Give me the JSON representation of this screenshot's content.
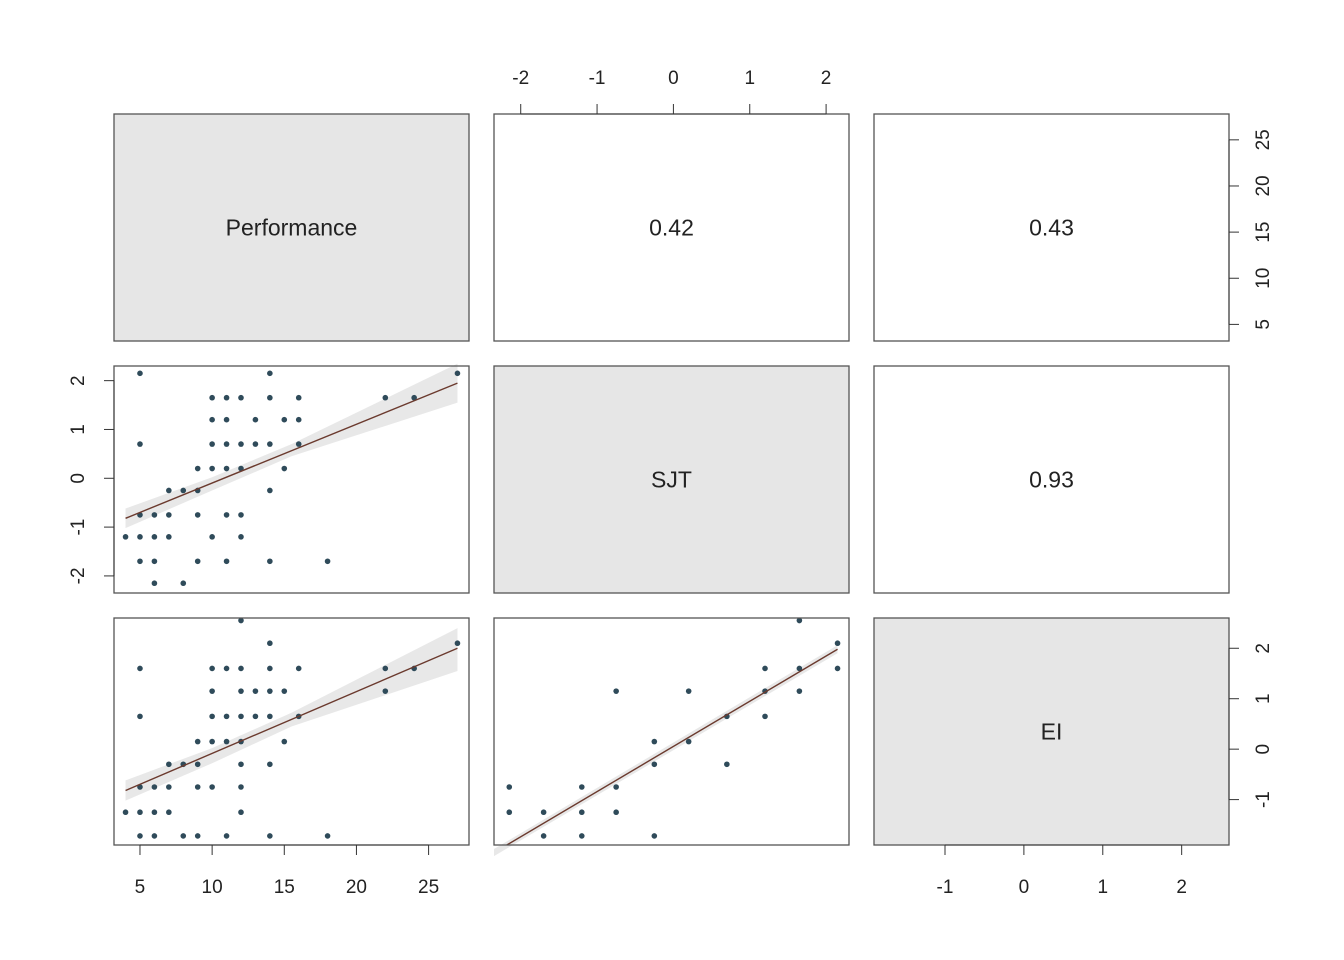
{
  "chart_data": {
    "type": "scatter",
    "variables": [
      "Performance",
      "SJT",
      "EI"
    ],
    "axes": {
      "Performance": {
        "ticks": [
          5,
          10,
          15,
          20,
          25
        ],
        "lim": [
          3.2,
          27.8
        ]
      },
      "SJT": {
        "ticks": [
          -2,
          -1,
          0,
          1,
          2
        ],
        "lim": [
          -2.35,
          2.3
        ]
      },
      "EI": {
        "ticks": [
          -1,
          0,
          1,
          2
        ],
        "lim": [
          -1.9,
          2.6
        ]
      }
    },
    "correlations": [
      {
        "row": "Performance",
        "col": "SJT",
        "value": "0.42"
      },
      {
        "row": "Performance",
        "col": "EI",
        "value": "0.43"
      },
      {
        "row": "SJT",
        "col": "EI",
        "value": "0.93"
      }
    ],
    "scatter_panels": [
      {
        "x": "Performance",
        "y": "SJT",
        "points": [
          [
            5,
            2.15
          ],
          [
            14,
            2.15
          ],
          [
            27,
            2.15
          ],
          [
            10,
            1.65
          ],
          [
            11,
            1.65
          ],
          [
            12,
            1.65
          ],
          [
            14,
            1.65
          ],
          [
            16,
            1.65
          ],
          [
            22,
            1.65
          ],
          [
            24,
            1.65
          ],
          [
            10,
            1.2
          ],
          [
            11,
            1.2
          ],
          [
            13,
            1.2
          ],
          [
            15,
            1.2
          ],
          [
            16,
            1.2
          ],
          [
            5,
            0.7
          ],
          [
            10,
            0.7
          ],
          [
            11,
            0.7
          ],
          [
            12,
            0.7
          ],
          [
            13,
            0.7
          ],
          [
            14,
            0.7
          ],
          [
            16,
            0.7
          ],
          [
            9,
            0.2
          ],
          [
            10,
            0.2
          ],
          [
            11,
            0.2
          ],
          [
            12,
            0.2
          ],
          [
            15,
            0.2
          ],
          [
            7,
            -0.25
          ],
          [
            8,
            -0.25
          ],
          [
            9,
            -0.25
          ],
          [
            14,
            -0.25
          ],
          [
            5,
            -0.75
          ],
          [
            6,
            -0.75
          ],
          [
            7,
            -0.75
          ],
          [
            9,
            -0.75
          ],
          [
            11,
            -0.75
          ],
          [
            12,
            -0.75
          ],
          [
            4,
            -1.2
          ],
          [
            5,
            -1.2
          ],
          [
            6,
            -1.2
          ],
          [
            7,
            -1.2
          ],
          [
            10,
            -1.2
          ],
          [
            12,
            -1.2
          ],
          [
            5,
            -1.7
          ],
          [
            6,
            -1.7
          ],
          [
            9,
            -1.7
          ],
          [
            11,
            -1.7
          ],
          [
            14,
            -1.7
          ],
          [
            18,
            -1.7
          ],
          [
            6,
            -2.15
          ],
          [
            8,
            -2.15
          ]
        ],
        "fit": {
          "x": [
            4,
            27
          ],
          "y": [
            -0.82,
            1.95
          ]
        },
        "band": {
          "x": [
            4,
            10,
            15.5,
            27
          ],
          "lower": [
            -1.02,
            -0.25,
            0.45,
            1.55
          ],
          "upper": [
            -0.62,
            0.02,
            0.7,
            2.35
          ]
        }
      },
      {
        "x": "Performance",
        "y": "EI",
        "points": [
          [
            12,
            2.55
          ],
          [
            14,
            2.1
          ],
          [
            27,
            2.1
          ],
          [
            5,
            1.6
          ],
          [
            10,
            1.6
          ],
          [
            11,
            1.6
          ],
          [
            12,
            1.6
          ],
          [
            14,
            1.6
          ],
          [
            16,
            1.6
          ],
          [
            22,
            1.6
          ],
          [
            24,
            1.6
          ],
          [
            10,
            1.15
          ],
          [
            12,
            1.15
          ],
          [
            13,
            1.15
          ],
          [
            14,
            1.15
          ],
          [
            15,
            1.15
          ],
          [
            22,
            1.15
          ],
          [
            5,
            0.65
          ],
          [
            10,
            0.65
          ],
          [
            11,
            0.65
          ],
          [
            12,
            0.65
          ],
          [
            13,
            0.65
          ],
          [
            14,
            0.65
          ],
          [
            16,
            0.65
          ],
          [
            9,
            0.15
          ],
          [
            10,
            0.15
          ],
          [
            11,
            0.15
          ],
          [
            12,
            0.15
          ],
          [
            15,
            0.15
          ],
          [
            7,
            -0.3
          ],
          [
            8,
            -0.3
          ],
          [
            9,
            -0.3
          ],
          [
            12,
            -0.3
          ],
          [
            14,
            -0.3
          ],
          [
            5,
            -0.75
          ],
          [
            6,
            -0.75
          ],
          [
            7,
            -0.75
          ],
          [
            9,
            -0.75
          ],
          [
            10,
            -0.75
          ],
          [
            12,
            -0.75
          ],
          [
            4,
            -1.25
          ],
          [
            5,
            -1.25
          ],
          [
            6,
            -1.25
          ],
          [
            7,
            -1.25
          ],
          [
            12,
            -1.25
          ],
          [
            5,
            -1.72
          ],
          [
            6,
            -1.72
          ],
          [
            8,
            -1.72
          ],
          [
            9,
            -1.72
          ],
          [
            11,
            -1.72
          ],
          [
            14,
            -1.72
          ],
          [
            18,
            -1.72
          ]
        ],
        "fit": {
          "x": [
            4,
            27
          ],
          "y": [
            -0.82,
            2.0
          ]
        },
        "band": {
          "x": [
            4,
            10,
            15.5,
            27
          ],
          "lower": [
            -1.02,
            -0.28,
            0.45,
            1.55
          ],
          "upper": [
            -0.62,
            0.02,
            0.72,
            2.4
          ]
        }
      },
      {
        "x": "SJT",
        "y": "EI",
        "points": [
          [
            1.65,
            2.55
          ],
          [
            2.15,
            2.1
          ],
          [
            1.2,
            1.6
          ],
          [
            1.65,
            1.6
          ],
          [
            2.15,
            1.6
          ],
          [
            -0.75,
            1.15
          ],
          [
            0.2,
            1.15
          ],
          [
            1.2,
            1.15
          ],
          [
            1.65,
            1.15
          ],
          [
            0.7,
            0.65
          ],
          [
            1.2,
            0.65
          ],
          [
            -0.25,
            0.15
          ],
          [
            0.2,
            0.15
          ],
          [
            -0.25,
            -0.3
          ],
          [
            0.7,
            -0.3
          ],
          [
            -2.15,
            -0.75
          ],
          [
            -1.2,
            -0.75
          ],
          [
            -0.75,
            -0.75
          ],
          [
            -2.15,
            -1.25
          ],
          [
            -1.7,
            -1.25
          ],
          [
            -1.2,
            -1.25
          ],
          [
            -0.75,
            -1.25
          ],
          [
            -1.7,
            -1.72
          ],
          [
            -1.2,
            -1.72
          ],
          [
            -0.25,
            -1.72
          ]
        ],
        "fit": {
          "x": [
            -2.35,
            2.15
          ],
          "y": [
            -2.05,
            1.98
          ]
        },
        "band": {
          "x": [
            -2.35,
            2.15
          ],
          "lower": [
            -2.12,
            1.9
          ],
          "upper": [
            -1.98,
            2.06
          ]
        }
      }
    ]
  }
}
